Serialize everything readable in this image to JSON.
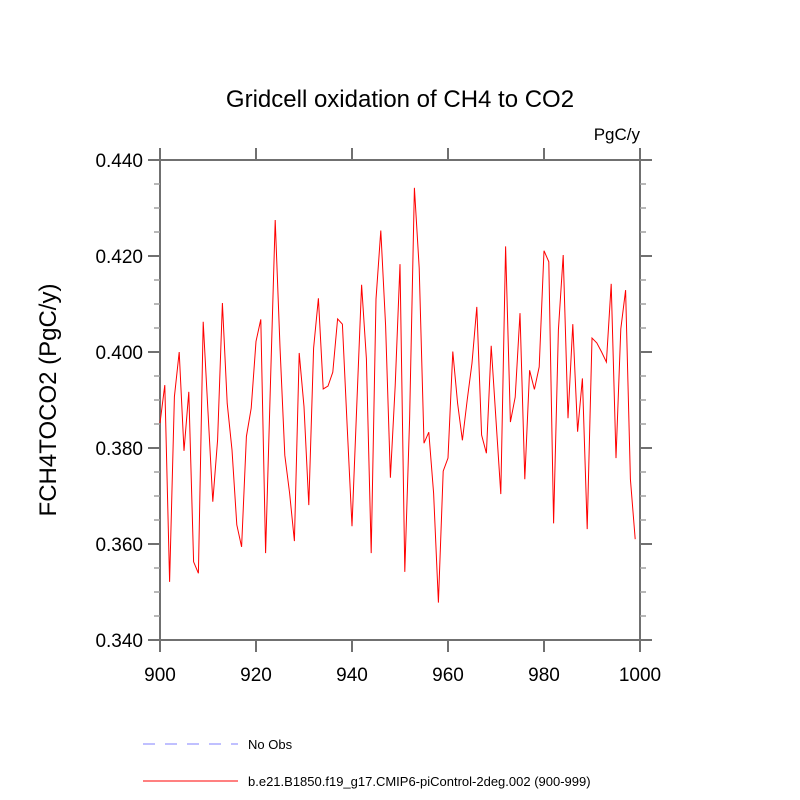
{
  "chart_data": {
    "type": "line",
    "title": "Gridcell oxidation of CH4 to CO2",
    "units_label": "PgC/y",
    "xlabel": "",
    "ylabel": "FCH4TOCO2  (PgC/y)",
    "xlim": [
      900,
      1000
    ],
    "ylim": [
      0.34,
      0.44
    ],
    "x_ticks": [
      900,
      920,
      940,
      960,
      980,
      1000
    ],
    "x_tick_labels": [
      "900",
      "920",
      "940",
      "960",
      "980",
      "1000"
    ],
    "y_ticks": [
      0.34,
      0.36,
      0.38,
      0.4,
      0.42,
      0.44
    ],
    "y_tick_labels": [
      "0.340",
      "0.360",
      "0.380",
      "0.400",
      "0.420",
      "0.440"
    ],
    "y_minor_step": 0.005,
    "grid": false,
    "legend_position": "bottom",
    "x": [
      900,
      901,
      902,
      903,
      904,
      905,
      906,
      907,
      908,
      909,
      910,
      911,
      912,
      913,
      914,
      915,
      916,
      917,
      918,
      919,
      920,
      921,
      922,
      923,
      924,
      925,
      926,
      927,
      928,
      929,
      930,
      931,
      932,
      933,
      934,
      935,
      936,
      937,
      938,
      939,
      940,
      941,
      942,
      943,
      944,
      945,
      946,
      947,
      948,
      949,
      950,
      951,
      952,
      953,
      954,
      955,
      956,
      957,
      958,
      959,
      960,
      961,
      962,
      963,
      964,
      965,
      966,
      967,
      968,
      969,
      970,
      971,
      972,
      973,
      974,
      975,
      976,
      977,
      978,
      979,
      980,
      981,
      982,
      983,
      984,
      985,
      986,
      987,
      988,
      989,
      990,
      991,
      992,
      993,
      994,
      995,
      996,
      997,
      998,
      999
    ],
    "series": [
      {
        "name": "b.e21.B1850.f19_g17.CMIP6-piControl-2deg.002 (900-999)",
        "color": "#ff0000",
        "style": "solid",
        "values": [
          0.3852,
          0.3931,
          0.3521,
          0.3907,
          0.4,
          0.3794,
          0.3917,
          0.3563,
          0.3539,
          0.4063,
          0.3875,
          0.3688,
          0.3817,
          0.4102,
          0.3893,
          0.3796,
          0.364,
          0.3594,
          0.3824,
          0.3883,
          0.4022,
          0.4068,
          0.3581,
          0.393,
          0.4275,
          0.401,
          0.3785,
          0.3706,
          0.3606,
          0.3998,
          0.3886,
          0.3681,
          0.4008,
          0.4112,
          0.3923,
          0.3929,
          0.3958,
          0.4069,
          0.4058,
          0.3844,
          0.3637,
          0.389,
          0.414,
          0.3986,
          0.3581,
          0.411,
          0.4253,
          0.4055,
          0.3738,
          0.393,
          0.4183,
          0.3542,
          0.386,
          0.4342,
          0.4175,
          0.381,
          0.3833,
          0.3706,
          0.3478,
          0.3752,
          0.3779,
          0.4001,
          0.3893,
          0.3816,
          0.39,
          0.3977,
          0.4094,
          0.3827,
          0.3789,
          0.4013,
          0.3858,
          0.3704,
          0.422,
          0.3854,
          0.3906,
          0.4081,
          0.3735,
          0.3962,
          0.3922,
          0.3969,
          0.4211,
          0.4188,
          0.3643,
          0.4046,
          0.4202,
          0.3862,
          0.4058,
          0.3834,
          0.3945,
          0.3631,
          0.4029,
          0.4019,
          0.4,
          0.3979,
          0.4142,
          0.3779,
          0.4048,
          0.4129,
          0.3735,
          0.361
        ]
      }
    ],
    "legend": [
      {
        "label": "No Obs",
        "color": "#8080ff",
        "style": "dashed"
      },
      {
        "label": "b.e21.B1850.f19_g17.CMIP6-piControl-2deg.002 (900-999)",
        "color": "#ff0000",
        "style": "solid"
      }
    ]
  }
}
